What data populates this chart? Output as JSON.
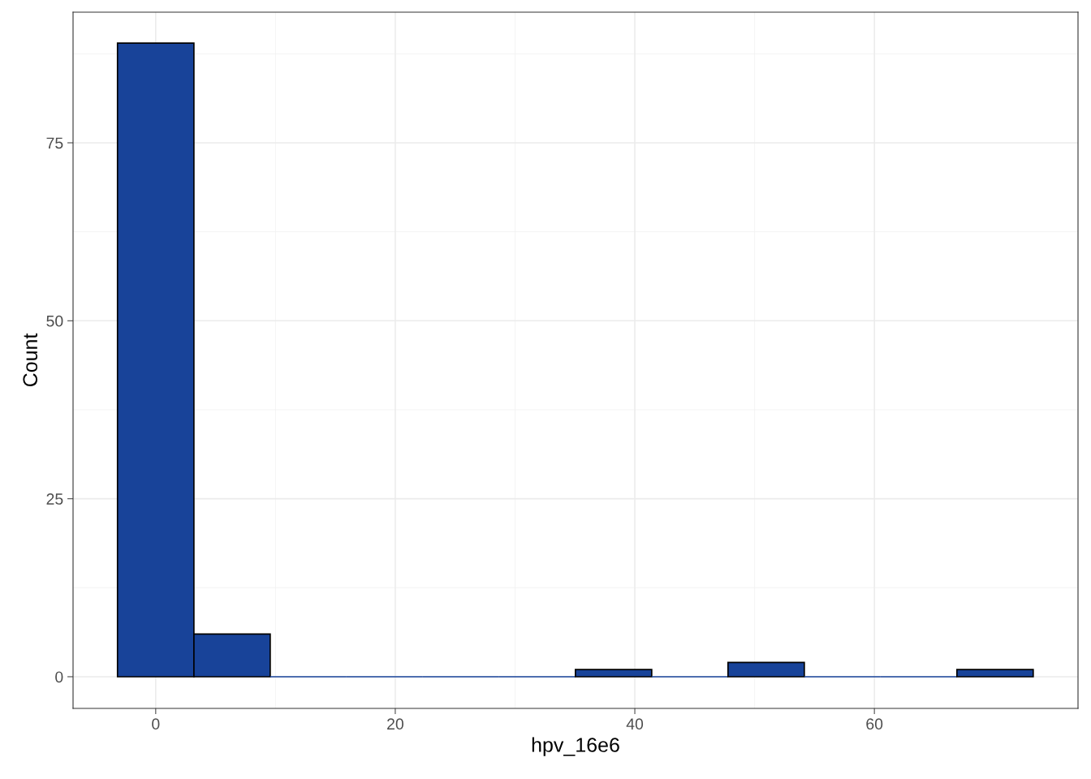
{
  "chart_data": {
    "type": "histogram",
    "xlabel": "hpv_16e6",
    "ylabel": "Count",
    "bins": [
      -3.19,
      3.19,
      9.56,
      15.93,
      22.3,
      28.67,
      35.04,
      41.41,
      47.78,
      54.15,
      60.52,
      66.89,
      73.26
    ],
    "values": [
      89,
      6,
      0,
      0,
      0,
      0,
      1,
      0,
      2,
      0,
      0,
      1
    ],
    "color": "#184399",
    "xlim": [
      -6.9,
      77.0
    ],
    "xticks": [
      0,
      20,
      40,
      60
    ],
    "ylim": [
      -4.45,
      93.35
    ],
    "yticks": [
      0,
      25,
      50,
      75
    ],
    "grid": true
  }
}
